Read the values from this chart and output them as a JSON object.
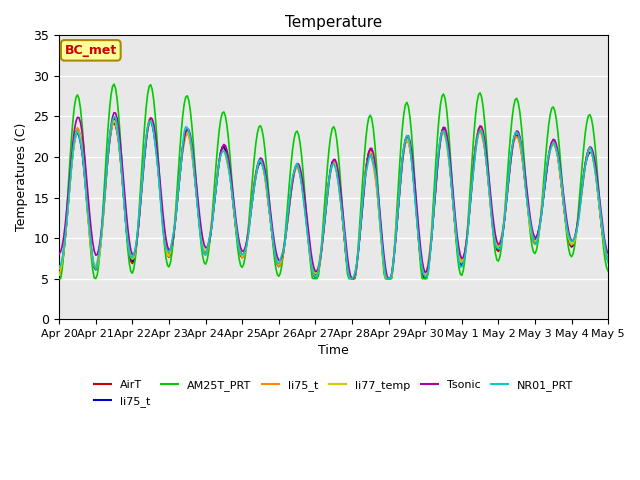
{
  "title": "Temperature",
  "xlabel": "Time",
  "ylabel": "Temperatures (C)",
  "ylim": [
    0,
    35
  ],
  "yticks": [
    0,
    5,
    10,
    15,
    20,
    25,
    30,
    35
  ],
  "background_color": "#e8e8e8",
  "plot_bg_color": "#e8e8e8",
  "grid_color": "white",
  "series": {
    "AirT": {
      "color": "#cc0000",
      "lw": 1.2
    },
    "li75_t_b": {
      "color": "#0000cc",
      "lw": 1.2
    },
    "AM25T_PRT": {
      "color": "#00cc00",
      "lw": 1.2
    },
    "li75_t": {
      "color": "#ff8800",
      "lw": 1.2
    },
    "li77_temp": {
      "color": "#cccc00",
      "lw": 1.2
    },
    "Tsonic": {
      "color": "#aa00aa",
      "lw": 1.2
    },
    "NR01_PRT": {
      "color": "#00cccc",
      "lw": 1.2
    }
  },
  "legend_labels": [
    "AirT",
    "li75_t",
    "AM25T_PRT",
    "li75_t",
    "li77_temp",
    "Tsonic",
    "NR01_PRT"
  ],
  "legend_colors": [
    "#cc0000",
    "#0000cc",
    "#00cc00",
    "#ff8800",
    "#cccc00",
    "#aa00aa",
    "#00cccc"
  ],
  "annotation_text": "BC_met",
  "annotation_color": "#cc0000",
  "annotation_bg": "#ffff99",
  "annotation_border": "#aa8800"
}
